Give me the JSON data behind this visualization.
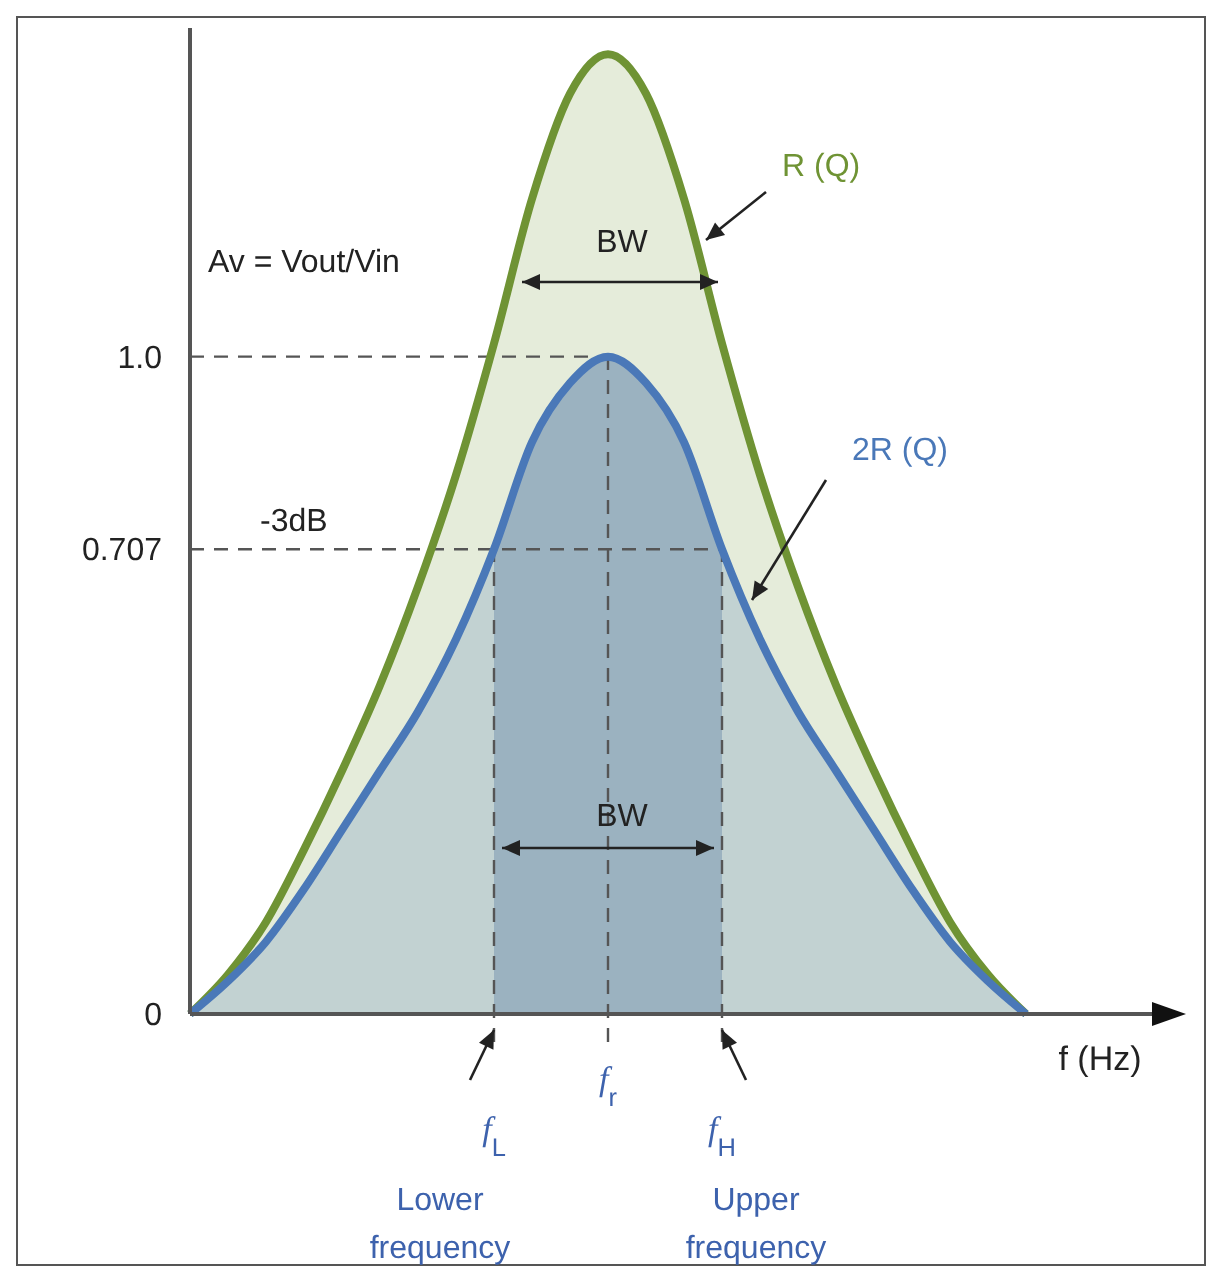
{
  "chart_data": {
    "type": "area",
    "ylabel": "Av = Vout/Vin",
    "xlabel": "f (Hz)",
    "categories": [
      null,
      null,
      null,
      null,
      null,
      null,
      null,
      null,
      "f$_{L}$",
      null,
      null,
      "f$_{r}$",
      null,
      null,
      "f$_{H}$",
      null,
      null,
      null,
      null,
      null,
      null,
      null,
      null
    ],
    "series": [
      {
        "name": "R (Q)",
        "color": "#6f9334",
        "values": [
          0,
          0.06,
          0.14,
          0.25,
          0.37,
          0.5,
          0.65,
          0.82,
          1.02,
          1.24,
          1.4,
          1.46,
          1.4,
          1.24,
          1.02,
          0.82,
          0.65,
          0.5,
          0.37,
          0.25,
          0.14,
          0.06,
          0
        ]
      },
      {
        "name": "2R (Q)",
        "color": "#4a78b8",
        "values": [
          0,
          0.05,
          0.11,
          0.19,
          0.28,
          0.37,
          0.46,
          0.57,
          0.707,
          0.87,
          0.96,
          1.0,
          0.96,
          0.87,
          0.707,
          0.57,
          0.46,
          0.37,
          0.28,
          0.19,
          0.11,
          0.05,
          0
        ]
      }
    ],
    "ylim": [
      0,
      1.5
    ],
    "yticks": [
      0,
      0.707,
      {
        "value": 1,
        "label": "1.0"
      }
    ],
    "ref_lines": [
      {
        "axis": "y",
        "value": 1,
        "line_style": "dashed"
      },
      {
        "axis": "y",
        "value": 0.707,
        "label": "-3dB",
        "line_style": "dashed"
      },
      {
        "axis": "x",
        "value": "f$_{L}$",
        "line_style": "dashed"
      },
      {
        "axis": "x",
        "value": "f$_{r}$",
        "line_style": "dashed"
      },
      {
        "axis": "x",
        "value": "f$_{H}$",
        "line_style": "dashed"
      }
    ],
    "bands": [
      {
        "axis": "x",
        "from": "f$_{L}$",
        "to": "f$_{H}$",
        "color": "#c3cde3"
      }
    ],
    "annotations": [
      "BW",
      "BW",
      "Lower frequency",
      "Upper frequency"
    ]
  }
}
